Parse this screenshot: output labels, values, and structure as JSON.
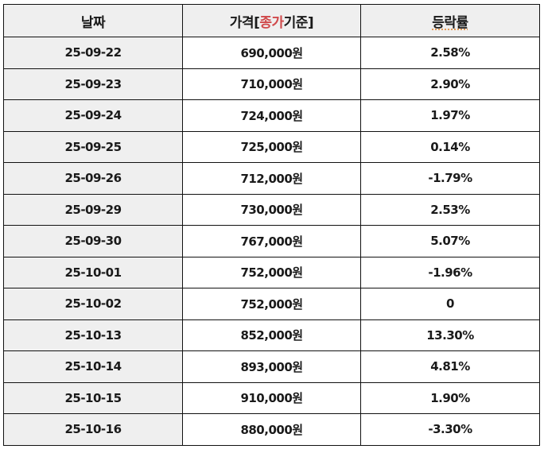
{
  "table": {
    "headers": {
      "date": "날짜",
      "price_prefix": "가격[",
      "price_accent": "종가",
      "price_suffix": "기준]",
      "change": "등락률"
    },
    "rows": [
      {
        "date": "25-09-22",
        "price": "690,000원",
        "change": "2.58%"
      },
      {
        "date": "25-09-23",
        "price": "710,000원",
        "change": "2.90%"
      },
      {
        "date": "25-09-24",
        "price": "724,000원",
        "change": "1.97%"
      },
      {
        "date": "25-09-25",
        "price": "725,000원",
        "change": "0.14%"
      },
      {
        "date": "25-09-26",
        "price": "712,000원",
        "change": "-1.79%"
      },
      {
        "date": "25-09-29",
        "price": "730,000원",
        "change": "2.53%"
      },
      {
        "date": "25-09-30",
        "price": "767,000원",
        "change": "5.07%"
      },
      {
        "date": "25-10-01",
        "price": "752,000원",
        "change": "-1.96%"
      },
      {
        "date": "25-10-02",
        "price": "752,000원",
        "change": "0"
      },
      {
        "date": "25-10-13",
        "price": "852,000원",
        "change": "13.30%"
      },
      {
        "date": "25-10-14",
        "price": "893,000원",
        "change": "4.81%"
      },
      {
        "date": "25-10-15",
        "price": "910,000원",
        "change": "1.90%"
      },
      {
        "date": "25-10-16",
        "price": "880,000원",
        "change": "-3.30%"
      }
    ]
  },
  "colors": {
    "price_text": "#b8393c",
    "header_accent": "#d0494b",
    "header_bg": "#efefef",
    "date_col_bg": "#efefef",
    "border": "#111111"
  }
}
